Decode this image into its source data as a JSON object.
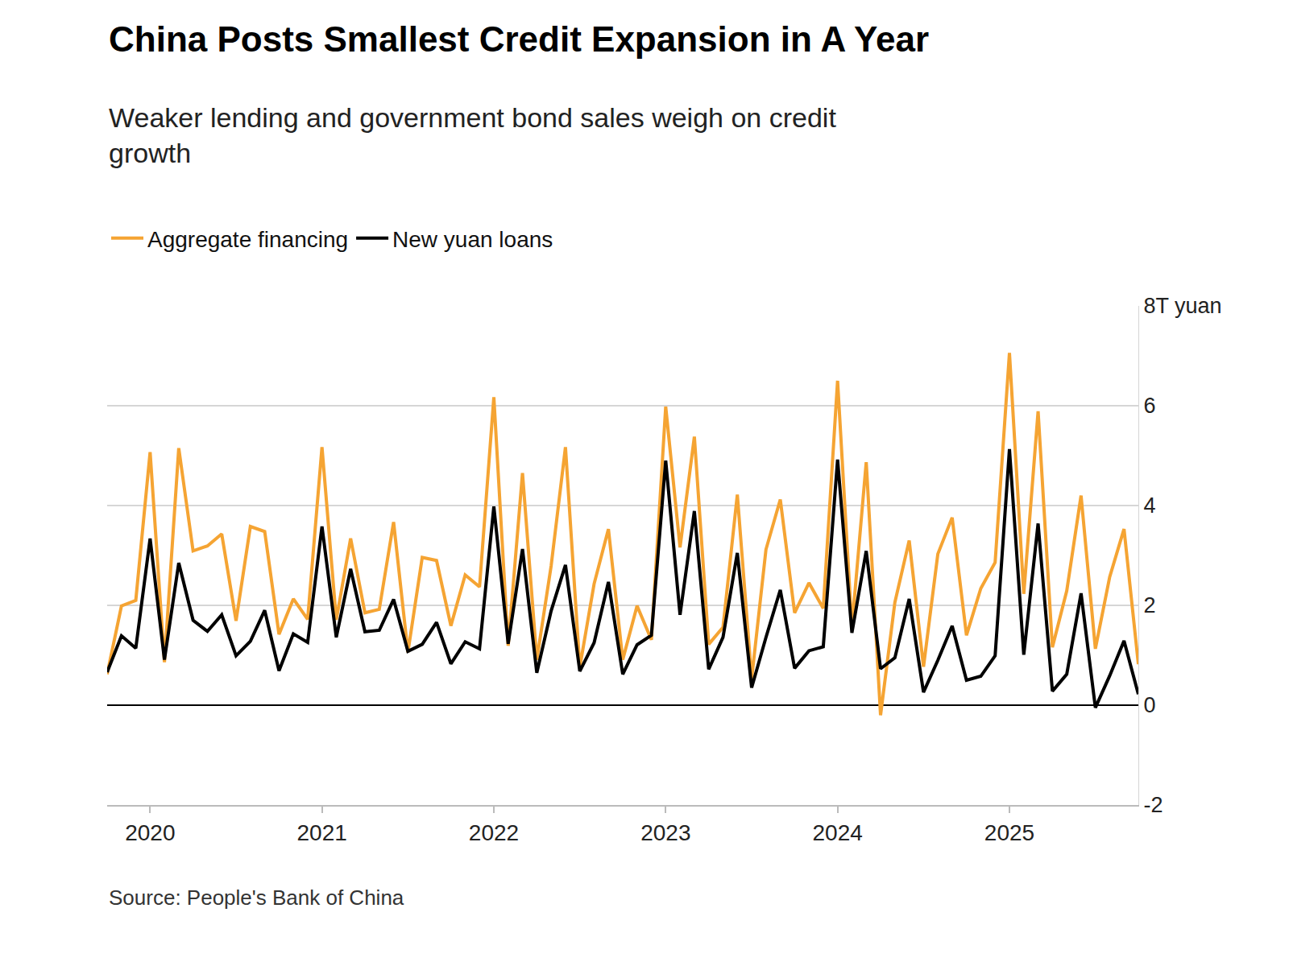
{
  "chart_data": {
    "type": "line",
    "title": "China Posts Smallest Credit Expansion in A Year",
    "subtitle": "Weaker lending and government bond sales weigh on credit growth",
    "source": "Source: People's Bank of China",
    "categories": [
      null,
      null,
      null,
      "2020",
      null,
      null,
      null,
      null,
      null,
      null,
      null,
      null,
      null,
      null,
      null,
      "2021",
      null,
      null,
      null,
      null,
      null,
      null,
      null,
      null,
      null,
      null,
      null,
      "2022",
      null,
      null,
      null,
      null,
      null,
      null,
      null,
      null,
      null,
      null,
      null,
      "2023",
      null,
      null,
      null,
      null,
      null,
      null,
      null,
      null,
      null,
      null,
      null,
      "2024",
      null,
      null,
      null,
      null,
      null,
      null,
      null,
      null,
      null,
      null,
      null,
      "2025",
      null,
      null,
      null,
      null,
      null,
      null,
      null,
      null,
      null
    ],
    "series": [
      {
        "name": "Aggregate financing",
        "color": "#f5a433",
        "values": [
          0.62,
          1.99,
          2.1,
          5.07,
          0.86,
          5.15,
          3.09,
          3.19,
          3.43,
          1.69,
          3.58,
          3.48,
          1.42,
          2.13,
          1.72,
          5.17,
          1.71,
          3.34,
          1.85,
          1.92,
          3.67,
          1.06,
          2.96,
          2.9,
          1.59,
          2.61,
          2.37,
          6.17,
          1.19,
          4.65,
          0.91,
          2.79,
          5.17,
          0.76,
          2.43,
          3.53,
          0.91,
          1.99,
          1.31,
          5.98,
          3.16,
          5.38,
          1.22,
          1.56,
          4.22,
          0.53,
          3.12,
          4.12,
          1.85,
          2.45,
          1.94,
          6.5,
          1.56,
          4.87,
          -0.2,
          2.06,
          3.3,
          0.77,
          3.03,
          3.76,
          1.4,
          2.34,
          2.86,
          7.06,
          2.23,
          5.89,
          1.16,
          2.29,
          4.2,
          1.13,
          2.57,
          3.53,
          0.82
        ]
      },
      {
        "name": "New yuan loans",
        "color": "#000000",
        "values": [
          0.66,
          1.39,
          1.14,
          3.34,
          0.91,
          2.85,
          1.7,
          1.48,
          1.81,
          0.99,
          1.28,
          1.9,
          0.69,
          1.43,
          1.26,
          3.58,
          1.36,
          2.73,
          1.47,
          1.5,
          2.12,
          1.08,
          1.22,
          1.66,
          0.83,
          1.27,
          1.13,
          3.98,
          1.23,
          3.13,
          0.65,
          1.89,
          2.81,
          0.68,
          1.25,
          2.47,
          0.62,
          1.21,
          1.4,
          4.9,
          1.81,
          3.89,
          0.72,
          1.36,
          3.05,
          0.35,
          1.36,
          2.31,
          0.74,
          1.09,
          1.17,
          4.92,
          1.45,
          3.09,
          0.73,
          0.95,
          2.13,
          0.26,
          0.9,
          1.59,
          0.5,
          0.58,
          0.99,
          5.13,
          1.01,
          3.64,
          0.28,
          0.62,
          2.24,
          -0.05,
          0.59,
          1.29,
          0.22
        ]
      }
    ],
    "ylim": [
      -2,
      8
    ],
    "yticks": [
      -2,
      0,
      2,
      4,
      6,
      {
        "value": 8,
        "label": "8T yuan"
      }
    ],
    "grid": true,
    "legend": "top-left"
  }
}
